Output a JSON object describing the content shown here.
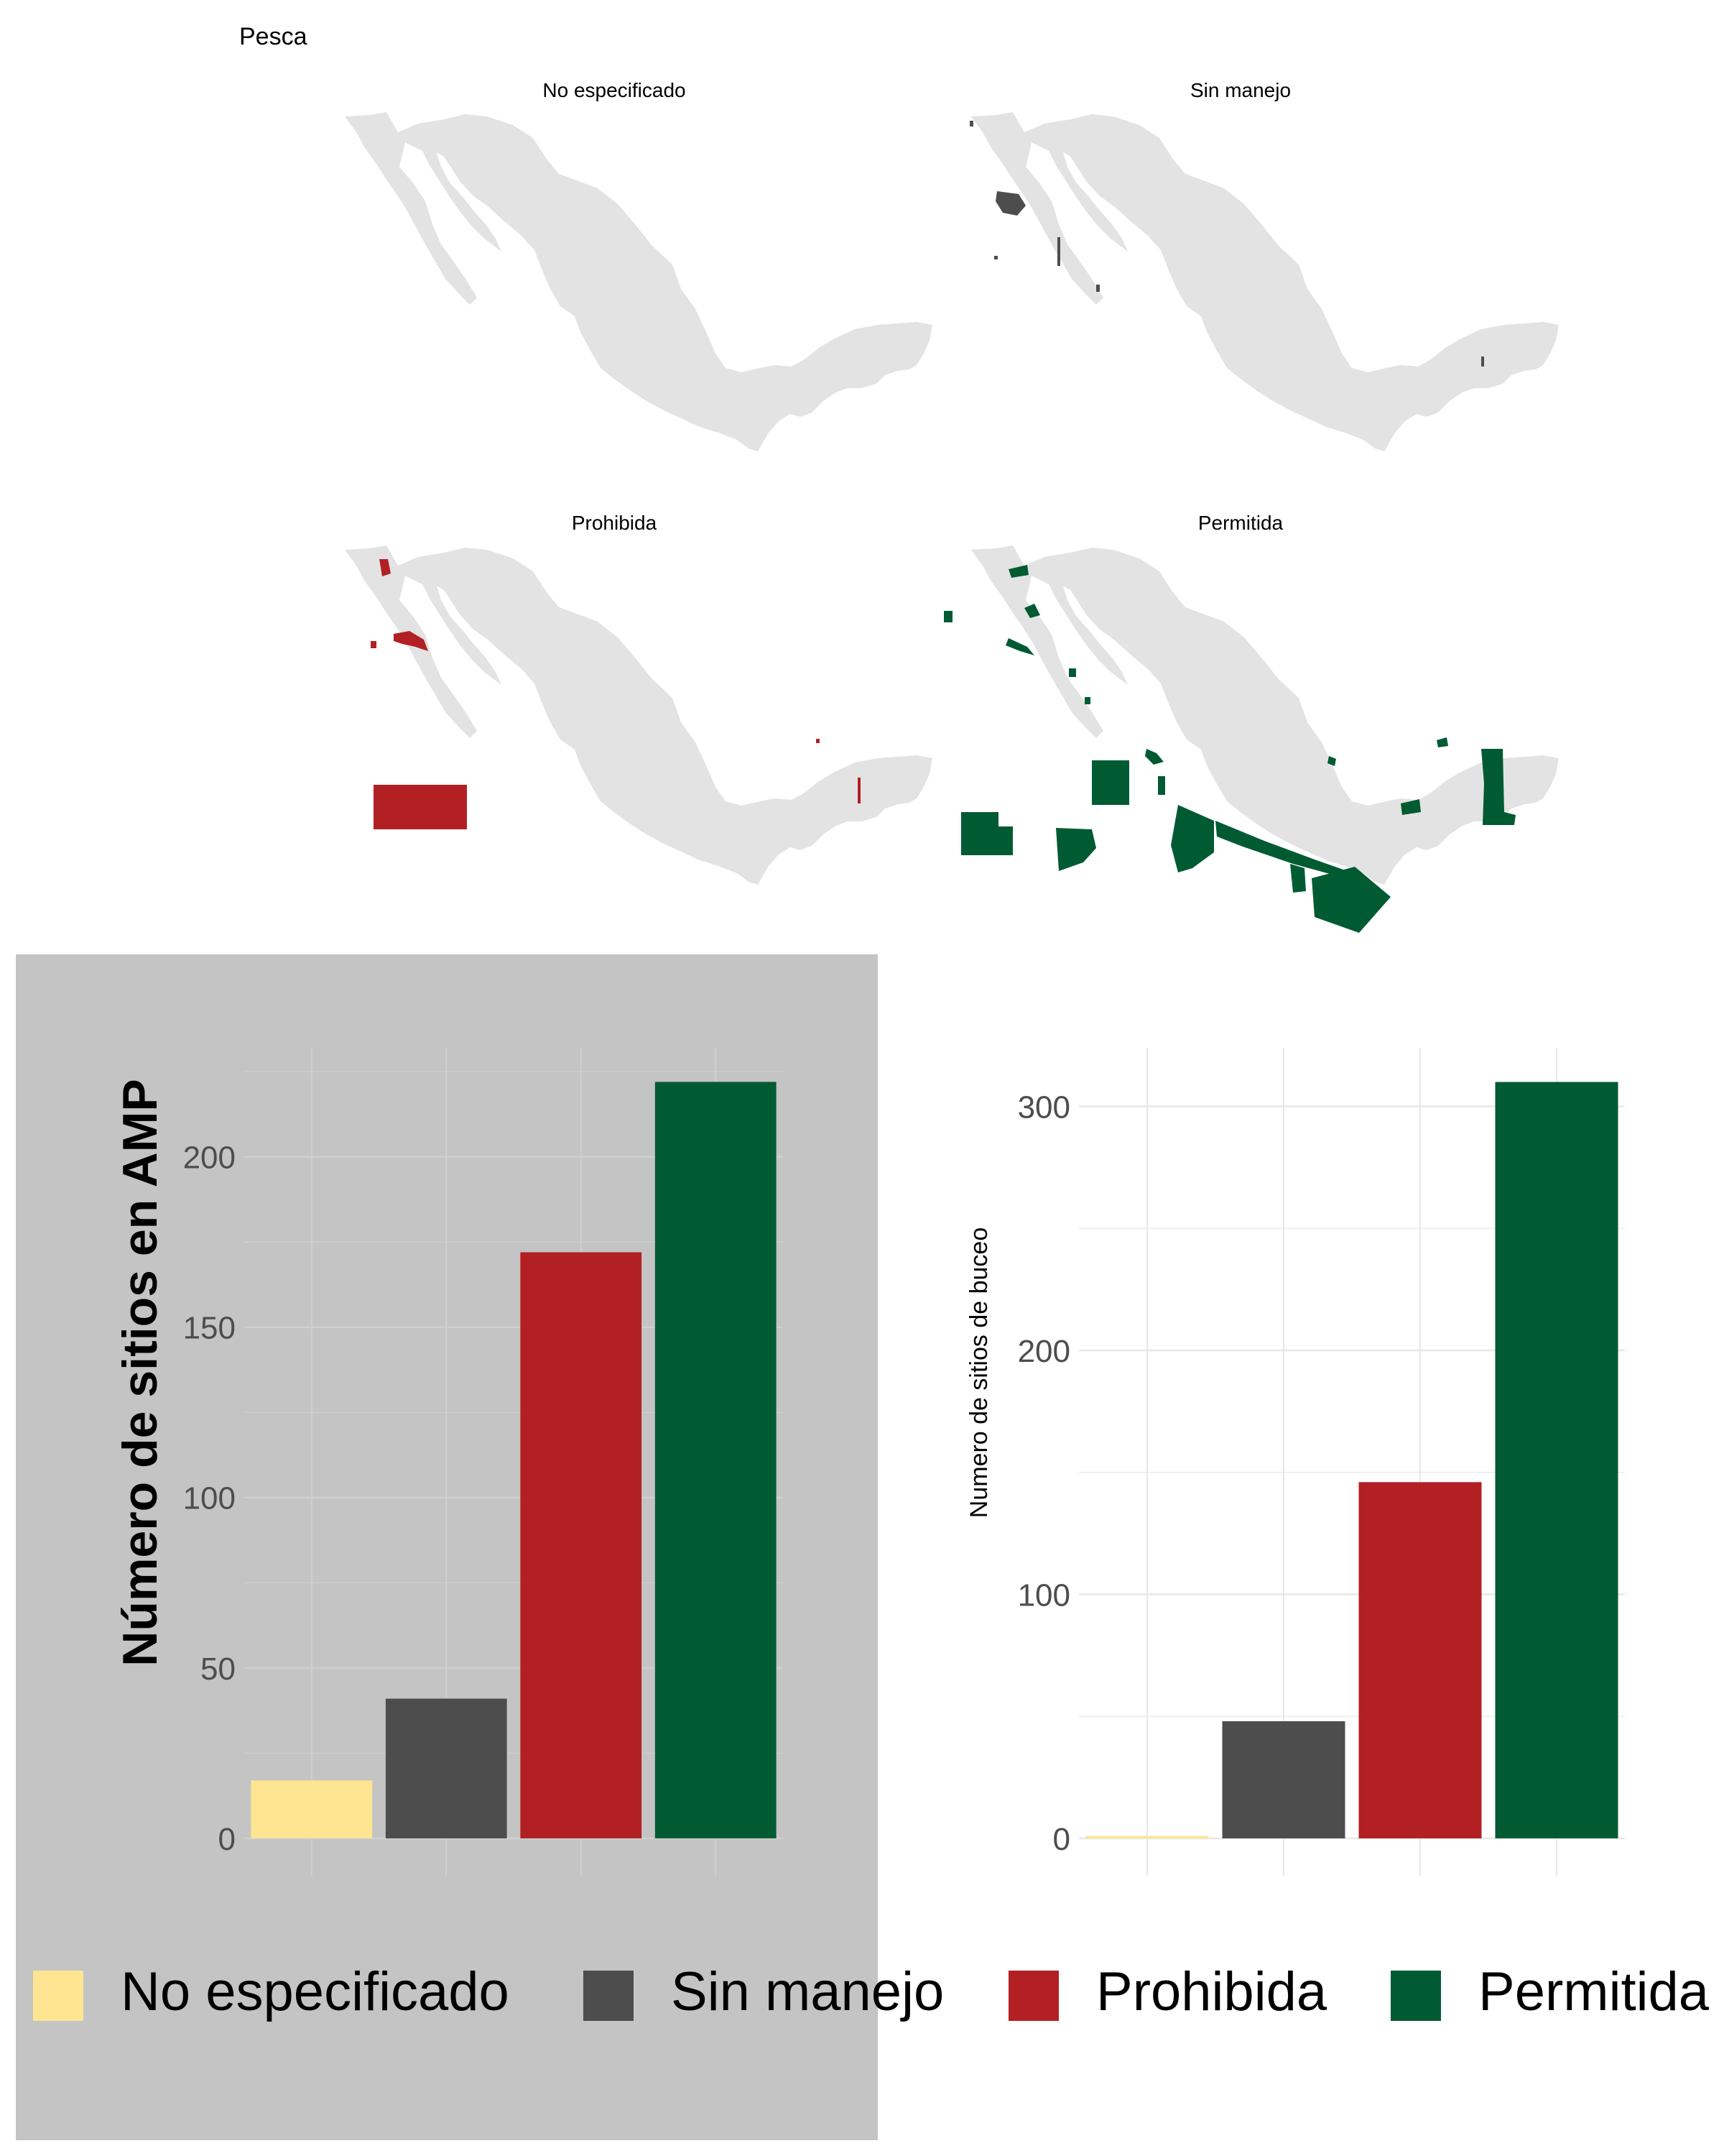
{
  "figure": {
    "main_title": "Pesca"
  },
  "colors": {
    "land": "#e3e3e3",
    "no_especificado": "#fde592",
    "sin_manejo": "#4d4d4d",
    "prohibida": "#b22024",
    "permitida": "#005b33",
    "panel_gray": "#c4c4c4",
    "grid_light": "#e8e8e8",
    "grid_on_gray": "#cfcfcf"
  },
  "maps": [
    {
      "id": "no-especificado",
      "title": "No especificado"
    },
    {
      "id": "sin-manejo",
      "title": "Sin manejo"
    },
    {
      "id": "prohibida",
      "title": "Prohibida"
    },
    {
      "id": "permitida",
      "title": "Permitida"
    }
  ],
  "legend": {
    "items": [
      {
        "label": "No especificado",
        "color": "#fde592"
      },
      {
        "label": "Sin manejo",
        "color": "#4d4d4d"
      },
      {
        "label": "Prohibida",
        "color": "#b22024"
      },
      {
        "label": "Permitida",
        "color": "#005b33"
      }
    ]
  },
  "chart_data": [
    {
      "type": "bar",
      "categories": [
        "No especificado",
        "Sin manejo",
        "Prohibida",
        "Permitida"
      ],
      "values": [
        17,
        41,
        172,
        222
      ],
      "ylabel": "Número de sitios en AMP",
      "xlabel": "",
      "yticks": [
        0,
        50,
        100,
        150,
        200
      ],
      "ylim": [
        0,
        232
      ],
      "grid": true,
      "background": "gray",
      "legend_position": "bottom"
    },
    {
      "type": "bar",
      "categories": [
        "No especificado",
        "Sin manejo",
        "Prohibida",
        "Permitida"
      ],
      "values": [
        1,
        48,
        146,
        310
      ],
      "ylabel": "Numero de sitios de buceo",
      "xlabel": "",
      "yticks": [
        0,
        100,
        200,
        300
      ],
      "ylim": [
        0,
        324
      ],
      "grid": true,
      "background": "white",
      "legend_position": "none"
    }
  ]
}
